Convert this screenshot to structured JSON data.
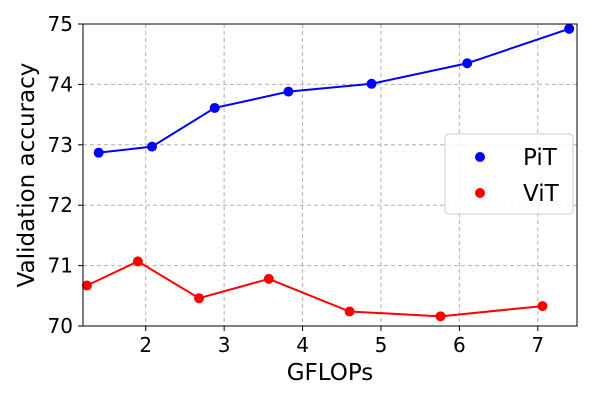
{
  "chart_data": {
    "type": "line",
    "title": "",
    "xlabel": "GFLOPs",
    "ylabel": "Validation accuracy",
    "xlim": [
      1.2,
      7.5
    ],
    "ylim": [
      70,
      75
    ],
    "xticks": [
      2,
      3,
      4,
      5,
      6,
      7
    ],
    "yticks": [
      70,
      71,
      72,
      73,
      74,
      75
    ],
    "grid": true,
    "legend_position": "right",
    "series": [
      {
        "name": "PiT",
        "color": "#0000ff",
        "x": [
          1.4,
          2.08,
          2.88,
          3.82,
          4.88,
          6.1,
          7.4
        ],
        "y": [
          72.87,
          72.97,
          73.61,
          73.88,
          74.01,
          74.35,
          74.92
        ]
      },
      {
        "name": "ViT",
        "color": "#ff0000",
        "x": [
          1.25,
          1.9,
          2.68,
          3.57,
          4.6,
          5.76,
          7.06
        ],
        "y": [
          70.67,
          71.07,
          70.46,
          70.78,
          70.24,
          70.16,
          70.33
        ]
      }
    ]
  }
}
